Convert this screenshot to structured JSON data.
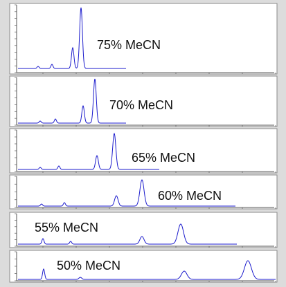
{
  "panels": [
    {
      "label": "75% MeCN"
    },
    {
      "label": "70% MeCN"
    },
    {
      "label": "65% MeCN"
    },
    {
      "label": "60% MeCN"
    },
    {
      "label": "55% MeCN"
    },
    {
      "label": "50% MeCN"
    }
  ]
}
